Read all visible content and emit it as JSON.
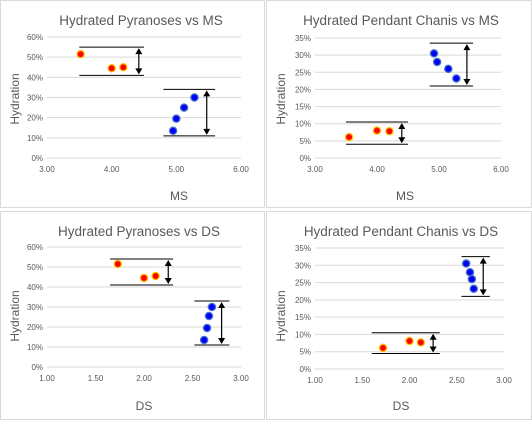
{
  "colors": {
    "orange_series": "#ff0000",
    "orange_series_edge": "#ffc000",
    "blue_series": "#0000ff",
    "blue_series_edge": "#4472c4",
    "gridline": "#d9d9d9",
    "annotation_line": "#000000"
  },
  "chart_data": [
    {
      "type": "scatter",
      "title": "Hydrated Pyranoses vs MS",
      "xlabel": "MS",
      "ylabel": "Hydration",
      "xlim": [
        3.0,
        6.0
      ],
      "ylim": [
        0,
        0.6
      ],
      "xticks": [
        "3.00",
        "4.00",
        "5.00",
        "6.00"
      ],
      "yticks": [
        "0%",
        "10%",
        "20%",
        "30%",
        "40%",
        "50%",
        "60%"
      ],
      "grid": "horizontal",
      "series": [
        {
          "color": "orange",
          "x": [
            3.52,
            4.0,
            4.18
          ],
          "y": [
            0.515,
            0.445,
            0.45
          ]
        },
        {
          "color": "blue",
          "x": [
            4.95,
            5.0,
            5.12,
            5.28
          ],
          "y": [
            0.135,
            0.195,
            0.25,
            0.3
          ]
        }
      ],
      "annotations": [
        {
          "type": "range-bracket",
          "x1": 3.5,
          "x2": 4.5,
          "y_top": 0.55,
          "y_bottom": 0.41,
          "arrow_x": 4.42
        },
        {
          "type": "range-bracket",
          "x1": 4.8,
          "x2": 5.6,
          "y_top": 0.34,
          "y_bottom": 0.11,
          "arrow_x": 5.47
        }
      ]
    },
    {
      "type": "scatter",
      "title": "Hydrated Pendant Chanis vs MS",
      "xlabel": "MS",
      "ylabel": "Hydration",
      "xlim": [
        3.0,
        6.0
      ],
      "ylim": [
        0,
        0.35
      ],
      "xticks": [
        "3.00",
        "4.00",
        "5.00",
        "6.00"
      ],
      "yticks": [
        "0%",
        "5%",
        "10%",
        "15%",
        "20%",
        "25%",
        "30%",
        "35%"
      ],
      "grid": "horizontal",
      "series": [
        {
          "color": "orange",
          "x": [
            3.55,
            4.0,
            4.2
          ],
          "y": [
            0.061,
            0.08,
            0.078
          ]
        },
        {
          "color": "blue",
          "x": [
            4.92,
            4.97,
            5.15,
            5.28
          ],
          "y": [
            0.305,
            0.28,
            0.26,
            0.232
          ]
        }
      ],
      "annotations": [
        {
          "type": "range-bracket",
          "x1": 3.5,
          "x2": 4.5,
          "y_top": 0.105,
          "y_bottom": 0.04,
          "arrow_x": 4.4
        },
        {
          "type": "range-bracket",
          "x1": 4.85,
          "x2": 5.55,
          "y_top": 0.335,
          "y_bottom": 0.21,
          "arrow_x": 5.45
        }
      ]
    },
    {
      "type": "scatter",
      "title": "Hydrated Pyranoses vs DS",
      "xlabel": "DS",
      "ylabel": "Hydration",
      "xlim": [
        1.0,
        3.0
      ],
      "ylim": [
        0,
        0.6
      ],
      "xticks": [
        "1.00",
        "1.50",
        "2.00",
        "2.50",
        "3.00"
      ],
      "yticks": [
        "0%",
        "10%",
        "20%",
        "30%",
        "40%",
        "50%",
        "60%"
      ],
      "grid": "horizontal",
      "series": [
        {
          "color": "orange",
          "x": [
            1.73,
            2.0,
            2.12
          ],
          "y": [
            0.515,
            0.445,
            0.455
          ]
        },
        {
          "color": "blue",
          "x": [
            2.62,
            2.65,
            2.67,
            2.7
          ],
          "y": [
            0.135,
            0.195,
            0.255,
            0.3
          ]
        }
      ],
      "annotations": [
        {
          "type": "range-bracket",
          "x1": 1.65,
          "x2": 2.3,
          "y_top": 0.54,
          "y_bottom": 0.41,
          "arrow_x": 2.25
        },
        {
          "type": "range-bracket",
          "x1": 2.52,
          "x2": 2.88,
          "y_top": 0.33,
          "y_bottom": 0.11,
          "arrow_x": 2.8
        }
      ]
    },
    {
      "type": "scatter",
      "title": "Hydrated Pendant Chanis vs DS",
      "xlabel": "DS",
      "ylabel": "Hydration",
      "xlim": [
        1.0,
        3.0
      ],
      "ylim": [
        0,
        0.35
      ],
      "xticks": [
        "1.00",
        "1.50",
        "2.00",
        "2.50",
        "3.00"
      ],
      "yticks": [
        "0%",
        "5%",
        "10%",
        "15%",
        "20%",
        "25%",
        "30%",
        "35%"
      ],
      "grid": "horizontal",
      "series": [
        {
          "color": "orange",
          "x": [
            1.72,
            2.0,
            2.12
          ],
          "y": [
            0.061,
            0.081,
            0.077
          ]
        },
        {
          "color": "blue",
          "x": [
            2.6,
            2.64,
            2.66,
            2.68
          ],
          "y": [
            0.305,
            0.28,
            0.26,
            0.232
          ]
        }
      ],
      "annotations": [
        {
          "type": "range-bracket",
          "x1": 1.6,
          "x2": 2.32,
          "y_top": 0.105,
          "y_bottom": 0.045,
          "arrow_x": 2.25
        },
        {
          "type": "range-bracket",
          "x1": 2.55,
          "x2": 2.85,
          "y_top": 0.325,
          "y_bottom": 0.21,
          "arrow_x": 2.78
        }
      ]
    }
  ]
}
